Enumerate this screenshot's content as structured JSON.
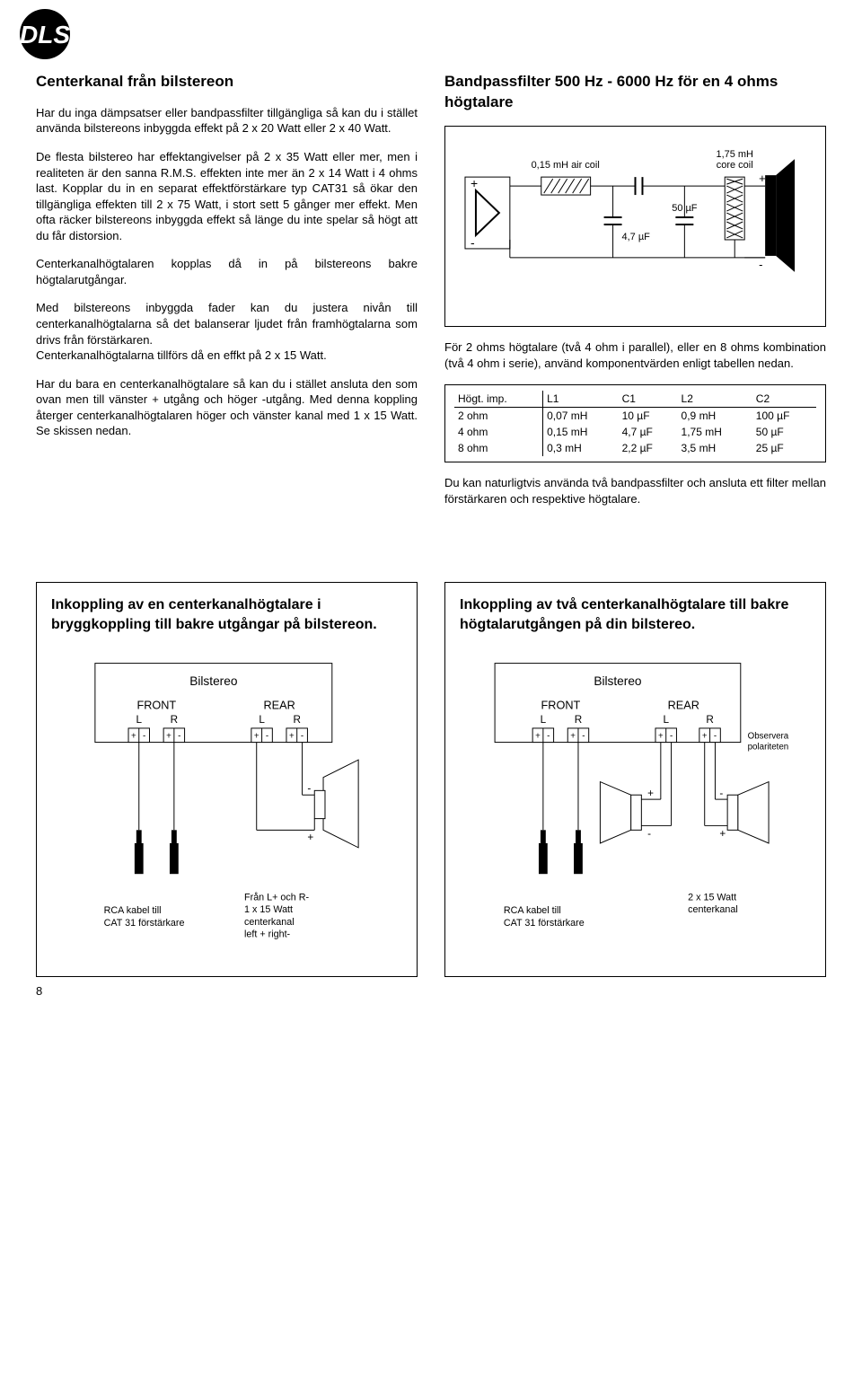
{
  "logo": {
    "letters": "DLS"
  },
  "left": {
    "heading": "Centerkanal från bilstereon",
    "p1": "Har du inga dämpsatser eller bandpassfilter tillgängliga så kan du i stället använda bilstereons inbyggda effekt på 2 x 20 Watt eller 2 x 40 Watt.",
    "p2": "De flesta bilstereo har effektangivelser på 2 x 35 Watt eller mer, men i realiteten är den sanna R.M.S. effekten inte mer än 2 x 14 Watt i 4 ohms last. Kopplar du in en separat effektförstärkare typ CAT31 så ökar den tillgängliga effekten till 2 x 75 Watt, i stort sett 5 gånger mer effekt. Men ofta räcker bilstereons inbyggda effekt så länge du inte spelar så högt att du får distorsion.",
    "p3": "Centerkanalhögtalaren kopplas då in på bilstereons bakre högtalarutgångar.",
    "p4": "Med bilstereons inbyggda fader kan du justera nivån till centerkanalhögtalarna så det balanserar ljudet från framhögtalarna som drivs från förstärkaren.",
    "p5": "Centerkanalhögtalarna tillförs då en effkt på 2 x 15 Watt.",
    "p6": "Har du bara en centerkanalhögtalare så kan du i stället ansluta den som ovan men till vänster + utgång och höger -utgång. Med denna koppling återger centerkanalhögtalaren höger och vänster kanal med 1 x 15 Watt. Se skissen nedan."
  },
  "right": {
    "heading": "Bandpassfilter 500 Hz - 6000 Hz för en 4 ohms högtalare",
    "circuit": {
      "l1_label": "0,15 mH air coil",
      "l2_label": "1,75 mH core coil",
      "c1_label": "4,7 µF",
      "c2_label": "50 µF"
    },
    "note": "För 2 ohms högtalare (två 4 ohm i parallel), eller en 8 ohms kombination (två 4 ohm i serie), använd komponentvärden enligt tabellen nedan.",
    "table": {
      "headers": [
        "Högt. imp.",
        "L1",
        "C1",
        "L2",
        "C2"
      ],
      "rows": [
        [
          "2 ohm",
          "0,07 mH",
          "10 µF",
          "0,9 mH",
          "100 µF"
        ],
        [
          "4 ohm",
          "0,15 mH",
          "4,7 µF",
          "1,75 mH",
          "50 µF"
        ],
        [
          "8 ohm",
          "0,3 mH",
          "2,2 µF",
          "3,5 mH",
          "25 µF"
        ]
      ]
    },
    "after": "Du kan naturligtvis använda två bandpassfilter och ansluta ett filter mellan förstärkaren och respektive högtalare."
  },
  "panel_left": {
    "heading": "Inkoppling av en centerkanalhögtalare i bryggkoppling till bakre utgångar på bilstereon.",
    "stereo": "Bilstereo",
    "front": "FRONT",
    "rear": "REAR",
    "l": "L",
    "r": "R",
    "rca": "RCA kabel till\nCAT 31 förstärkare",
    "spk": "Från L+ och R-\n1 x 15 Watt\ncenterkanal\nleft + right-"
  },
  "panel_right": {
    "heading": "Inkoppling av två centerkanalhögtalare till bakre högtalarutgången på din bilstereo.",
    "stereo": "Bilstereo",
    "front": "FRONT",
    "rear": "REAR",
    "l": "L",
    "r": "R",
    "observe": "Observera\npolariteten",
    "rca": "RCA kabel till\nCAT 31 förstärkare",
    "spk": "2 x 15 Watt\ncenterkanal"
  },
  "page_number": "8"
}
